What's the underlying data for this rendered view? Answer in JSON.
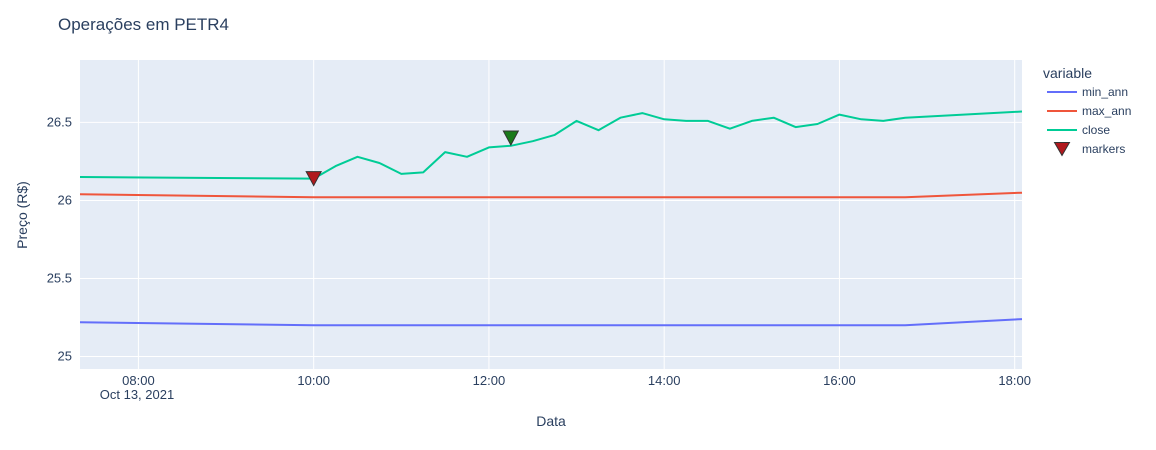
{
  "chart_data": {
    "type": "line",
    "title": "Operações em PETR4",
    "xlabel": "Data",
    "ylabel": "Preço (R$)",
    "x_date_label": "Oct 13, 2021",
    "xlim": [
      "07:20",
      "18:05"
    ],
    "ylim": [
      24.92,
      26.9
    ],
    "x_ticks": [
      "08:00",
      "10:00",
      "12:00",
      "14:00",
      "16:00",
      "18:00"
    ],
    "y_ticks": [
      25,
      25.5,
      26,
      26.5
    ],
    "y_tick_labels": [
      "25",
      "25.5",
      "26",
      "26.5"
    ],
    "legend_title": "variable",
    "legend_position": "right",
    "grid": true,
    "plot_bg": "#e5ecf6",
    "series": [
      {
        "name": "min_ann",
        "color": "#636efa",
        "points": [
          [
            "07:20",
            25.22
          ],
          [
            "10:00",
            25.2
          ],
          [
            "16:45",
            25.2
          ],
          [
            "18:05",
            25.24
          ]
        ]
      },
      {
        "name": "max_ann",
        "color": "#ef553b",
        "points": [
          [
            "07:20",
            26.04
          ],
          [
            "10:00",
            26.02
          ],
          [
            "16:45",
            26.02
          ],
          [
            "18:05",
            26.05
          ]
        ]
      },
      {
        "name": "close",
        "color": "#00cc96",
        "points": [
          [
            "07:20",
            26.15
          ],
          [
            "10:00",
            26.14
          ],
          [
            "10:15",
            26.22
          ],
          [
            "10:30",
            26.28
          ],
          [
            "10:45",
            26.24
          ],
          [
            "11:00",
            26.17
          ],
          [
            "11:15",
            26.18
          ],
          [
            "11:30",
            26.31
          ],
          [
            "11:45",
            26.28
          ],
          [
            "12:00",
            26.34
          ],
          [
            "12:15",
            26.35
          ],
          [
            "12:30",
            26.38
          ],
          [
            "12:45",
            26.42
          ],
          [
            "13:00",
            26.51
          ],
          [
            "13:15",
            26.45
          ],
          [
            "13:30",
            26.53
          ],
          [
            "13:45",
            26.56
          ],
          [
            "14:00",
            26.52
          ],
          [
            "14:15",
            26.51
          ],
          [
            "14:30",
            26.51
          ],
          [
            "14:45",
            26.46
          ],
          [
            "15:00",
            26.51
          ],
          [
            "15:15",
            26.53
          ],
          [
            "15:30",
            26.47
          ],
          [
            "15:45",
            26.49
          ],
          [
            "16:00",
            26.55
          ],
          [
            "16:15",
            26.52
          ],
          [
            "16:30",
            26.51
          ],
          [
            "16:45",
            26.53
          ],
          [
            "18:05",
            26.57
          ]
        ]
      }
    ],
    "markers": {
      "name": "markers",
      "legend_color": "#b0191e",
      "points": [
        {
          "x": "10:00",
          "y": 26.14,
          "color": "#b0191e"
        },
        {
          "x": "12:15",
          "y": 26.4,
          "color": "#1a7a1a"
        }
      ]
    }
  }
}
